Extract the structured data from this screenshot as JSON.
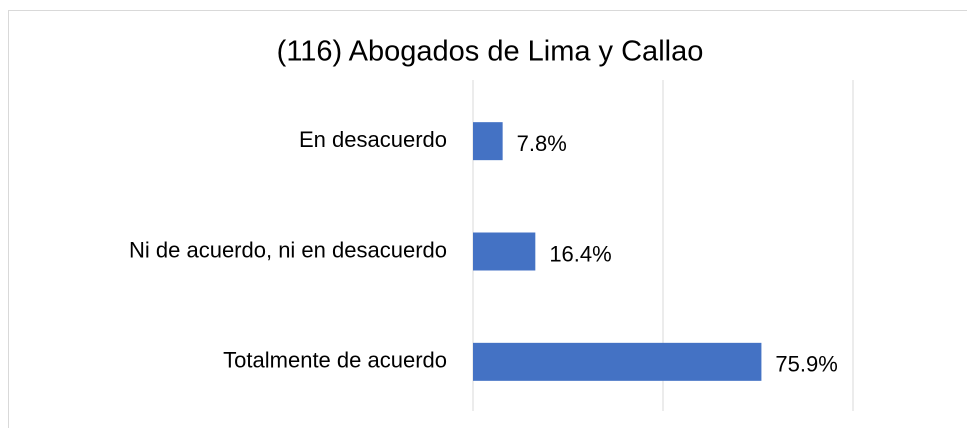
{
  "chart_data": {
    "type": "bar",
    "orientation": "horizontal",
    "title": "(116) Abogados de Lima y Callao",
    "categories": [
      "En desacuerdo",
      "Ni de acuerdo, ni en desacuerdo",
      "Totalmente de acuerdo"
    ],
    "values": [
      7.8,
      16.4,
      75.9
    ],
    "value_labels": [
      "7.8%",
      "16.4%",
      "75.9%"
    ],
    "color": "#4472c4",
    "xlim": [
      0,
      100
    ],
    "xticks": [
      0,
      50,
      100
    ],
    "grid": true
  }
}
